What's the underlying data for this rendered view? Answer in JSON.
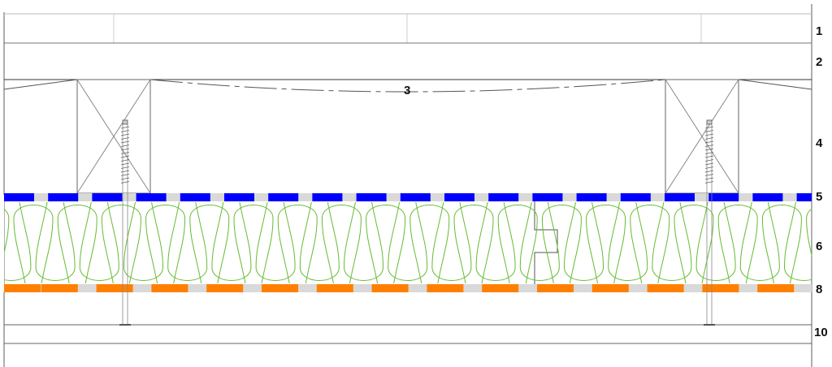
{
  "labels": {
    "l1": "1",
    "l2": "2",
    "l3": "3",
    "l4": "4",
    "l5": "5",
    "l6": "6",
    "l8": "8",
    "l10": "10"
  },
  "colors": {
    "vapour_barrier": "#0000ff",
    "membrane": "#ff8000",
    "gap": "#d9d9d9",
    "insulation": "#66bb33",
    "lines": "#555555"
  }
}
